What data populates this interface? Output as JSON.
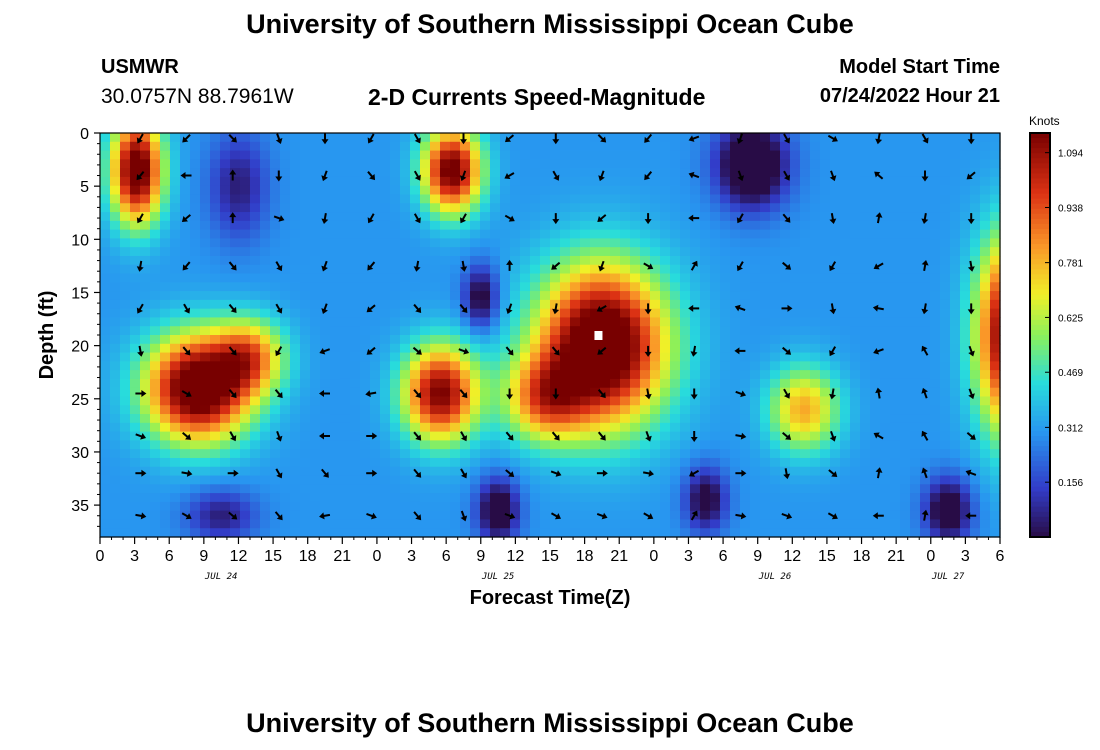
{
  "header": {
    "title": "University of Southern Mississippi Ocean Cube",
    "station": "USMWR",
    "coords": "30.0757N  88.7961W",
    "subtitle": "2-D Currents Speed-Magnitude",
    "model_start_label": "Model Start Time",
    "model_start_value": "07/24/2022 Hour 21"
  },
  "footer": {
    "title": "University of Southern Mississippi Ocean Cube"
  },
  "chart_data": {
    "type": "heatmap",
    "title": "2-D Currents Speed-Magnitude",
    "xlabel": "Forecast Time(Z)",
    "ylabel": "Depth (ft)",
    "colorbar_label": "Knots",
    "x_hours_range": [
      0,
      78
    ],
    "y_range": [
      0,
      38
    ],
    "y_ticks": [
      0,
      5,
      10,
      15,
      20,
      25,
      30,
      35
    ],
    "x_ticks": [
      {
        "h": 0,
        "label": "0"
      },
      {
        "h": 3,
        "label": "3"
      },
      {
        "h": 6,
        "label": "6"
      },
      {
        "h": 9,
        "label": "9"
      },
      {
        "h": 12,
        "label": "12"
      },
      {
        "h": 15,
        "label": "15"
      },
      {
        "h": 18,
        "label": "18"
      },
      {
        "h": 21,
        "label": "21"
      },
      {
        "h": 24,
        "label": "0"
      },
      {
        "h": 27,
        "label": "3"
      },
      {
        "h": 30,
        "label": "6"
      },
      {
        "h": 33,
        "label": "9"
      },
      {
        "h": 36,
        "label": "12"
      },
      {
        "h": 39,
        "label": "15"
      },
      {
        "h": 42,
        "label": "18"
      },
      {
        "h": 45,
        "label": "21"
      },
      {
        "h": 48,
        "label": "0"
      },
      {
        "h": 51,
        "label": "3"
      },
      {
        "h": 54,
        "label": "6"
      },
      {
        "h": 57,
        "label": "9"
      },
      {
        "h": 60,
        "label": "12"
      },
      {
        "h": 63,
        "label": "15"
      },
      {
        "h": 66,
        "label": "18"
      },
      {
        "h": 69,
        "label": "21"
      },
      {
        "h": 72,
        "label": "0"
      },
      {
        "h": 75,
        "label": "3"
      },
      {
        "h": 78,
        "label": "6"
      }
    ],
    "date_labels": [
      {
        "h": 10.5,
        "label": "JUL 24"
      },
      {
        "h": 34.5,
        "label": "JUL 25"
      },
      {
        "h": 58.5,
        "label": "JUL 26"
      },
      {
        "h": 73.5,
        "label": "JUL 27"
      }
    ],
    "colorbar_ticks": [
      1.094,
      0.938,
      0.781,
      0.625,
      0.469,
      0.312,
      0.156
    ],
    "colorbar_range": [
      0.0,
      1.15
    ],
    "speed_blobs": [
      {
        "h": 3.2,
        "d": 3.5,
        "sh": 2.2,
        "sd": 5.0,
        "amp": 0.95
      },
      {
        "h": 8.5,
        "d": 24.0,
        "sh": 4.5,
        "sd": 5.0,
        "amp": 1.0
      },
      {
        "h": 13.0,
        "d": 21.0,
        "sh": 3.0,
        "sd": 3.5,
        "amp": 0.5
      },
      {
        "h": 29.5,
        "d": 24.5,
        "sh": 3.2,
        "sd": 4.5,
        "amp": 0.85
      },
      {
        "h": 30.5,
        "d": 3.5,
        "sh": 2.5,
        "sd": 4.0,
        "amp": 0.9
      },
      {
        "h": 43.5,
        "d": 20.0,
        "sh": 5.5,
        "sd": 7.5,
        "amp": 1.05
      },
      {
        "h": 38.5,
        "d": 25.0,
        "sh": 3.5,
        "sd": 4.0,
        "amp": 0.5
      },
      {
        "h": 61.0,
        "d": 26.0,
        "sh": 3.0,
        "sd": 4.0,
        "amp": 0.5
      },
      {
        "h": 79.0,
        "d": 19.0,
        "sh": 3.0,
        "sd": 9.0,
        "amp": 0.95
      },
      {
        "h": 56.5,
        "d": 3.0,
        "sh": 3.0,
        "sd": 4.0,
        "amp": -0.5
      },
      {
        "h": 34.5,
        "d": 35.5,
        "sh": 1.8,
        "sd": 3.0,
        "amp": -0.4
      },
      {
        "h": 52.5,
        "d": 34.5,
        "sh": 1.8,
        "sd": 3.0,
        "amp": -0.35
      },
      {
        "h": 73.5,
        "d": 35.5,
        "sh": 2.0,
        "sd": 3.0,
        "amp": -0.4
      },
      {
        "h": 12.0,
        "d": 5.0,
        "sh": 2.5,
        "sd": 5.0,
        "amp": -0.25
      },
      {
        "h": 10.5,
        "d": 36.0,
        "sh": 3.0,
        "sd": 2.5,
        "amp": -0.25
      },
      {
        "h": 33.0,
        "d": 15.5,
        "sh": 1.5,
        "sd": 3.0,
        "amp": -0.35
      }
    ],
    "speed_baseline": 0.3,
    "arrow_columns_h": [
      3.5,
      7.5,
      11.5,
      15.5,
      19.5,
      23.5,
      27.5,
      31.5,
      35.5,
      39.5,
      43.5,
      47.5,
      51.5,
      55.5,
      59.5,
      63.5,
      67.5,
      71.5,
      75.5
    ],
    "arrow_rows_d": [
      0.5,
      4.0,
      8.0,
      12.5,
      16.5,
      20.5,
      24.5,
      28.5,
      32.0,
      36.0
    ],
    "arrow_angles_deg": [
      [
        120,
        135,
        45,
        70,
        90,
        120,
        60,
        90,
        140,
        90,
        45,
        130,
        160,
        110,
        60,
        30,
        100,
        60,
        90
      ],
      [
        130,
        180,
        270,
        90,
        110,
        50,
        60,
        110,
        150,
        60,
        110,
        130,
        200,
        70,
        60,
        70,
        220,
        90,
        140
      ],
      [
        120,
        140,
        270,
        20,
        100,
        120,
        60,
        120,
        30,
        90,
        140,
        90,
        180,
        120,
        50,
        80,
        280,
        100,
        90
      ],
      [
        100,
        130,
        50,
        60,
        110,
        130,
        100,
        80,
        270,
        140,
        110,
        30,
        300,
        120,
        40,
        120,
        150,
        280,
        80
      ],
      [
        120,
        60,
        50,
        60,
        110,
        140,
        50,
        50,
        110,
        100,
        150,
        90,
        180,
        200,
        0,
        80,
        190,
        100,
        90
      ],
      [
        80,
        50,
        50,
        120,
        160,
        140,
        40,
        20,
        50,
        50,
        140,
        90,
        100,
        180,
        40,
        120,
        160,
        240,
        70
      ],
      [
        0,
        30,
        50,
        50,
        180,
        170,
        50,
        50,
        90,
        90,
        50,
        80,
        90,
        20,
        60,
        100,
        260,
        250,
        70
      ],
      [
        20,
        40,
        60,
        70,
        180,
        0,
        50,
        60,
        50,
        50,
        50,
        70,
        90,
        10,
        40,
        70,
        210,
        240,
        40
      ],
      [
        0,
        10,
        0,
        60,
        50,
        0,
        50,
        60,
        40,
        20,
        0,
        10,
        150,
        0,
        80,
        40,
        280,
        250,
        200
      ],
      [
        10,
        30,
        40,
        50,
        170,
        20,
        50,
        70,
        20,
        30,
        20,
        30,
        300,
        10,
        20,
        30,
        180,
        280,
        180
      ]
    ]
  }
}
